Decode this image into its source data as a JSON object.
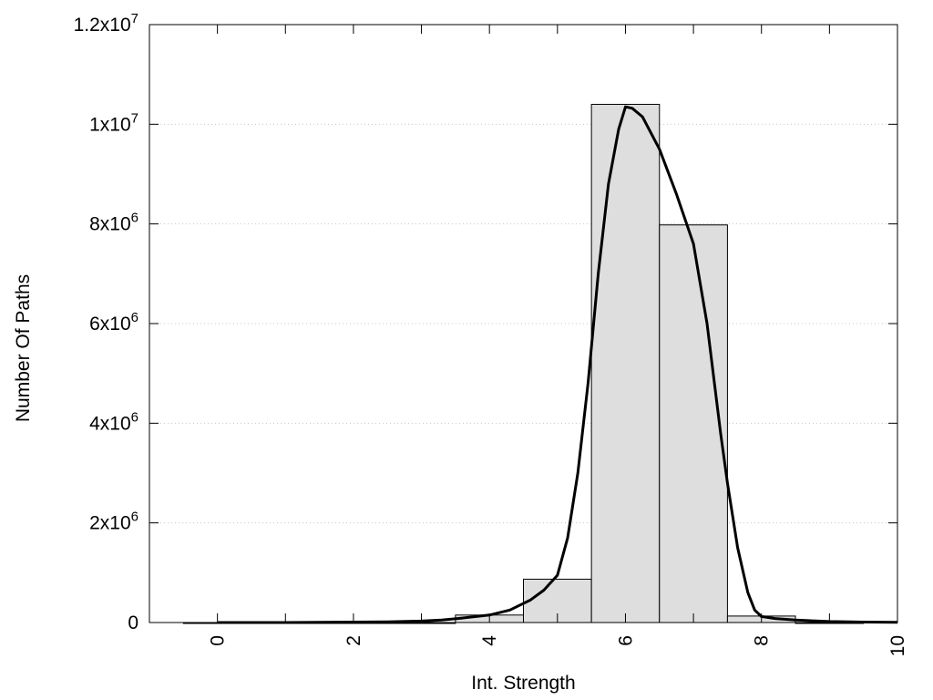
{
  "chart_data": {
    "type": "bar",
    "xlabel": "Int. Strength",
    "ylabel": "Number Of Paths",
    "xlim": [
      -1,
      10
    ],
    "ylim": [
      0,
      12000000
    ],
    "grid": "horizontal dotted",
    "x_ticks": [
      {
        "value": 0,
        "label": "0"
      },
      {
        "value": 2,
        "label": "2"
      },
      {
        "value": 4,
        "label": "4"
      },
      {
        "value": 6,
        "label": "6"
      },
      {
        "value": 8,
        "label": "8"
      },
      {
        "value": 10,
        "label": "10"
      }
    ],
    "y_ticks": [
      {
        "value": 0,
        "mantissa": "0",
        "exp": ""
      },
      {
        "value": 2000000,
        "mantissa": "2x10",
        "exp": "6"
      },
      {
        "value": 4000000,
        "mantissa": "4x10",
        "exp": "6"
      },
      {
        "value": 6000000,
        "mantissa": "6x10",
        "exp": "6"
      },
      {
        "value": 8000000,
        "mantissa": "8x10",
        "exp": "6"
      },
      {
        "value": 10000000,
        "mantissa": "1x10",
        "exp": "7"
      },
      {
        "value": 12000000,
        "mantissa": "1.2x10",
        "exp": "7"
      }
    ],
    "bars": [
      {
        "x": 0,
        "value": 0
      },
      {
        "x": 1,
        "value": 0
      },
      {
        "x": 2,
        "value": 0
      },
      {
        "x": 3,
        "value": 0
      },
      {
        "x": 4,
        "value": 150000
      },
      {
        "x": 5,
        "value": 870000
      },
      {
        "x": 6,
        "value": 10400000
      },
      {
        "x": 7,
        "value": 7980000
      },
      {
        "x": 8,
        "value": 130000
      },
      {
        "x": 9,
        "value": 0
      }
    ],
    "bar_width": 1,
    "curve": {
      "x": [
        0,
        1,
        2,
        2.5,
        3,
        3.3,
        3.6,
        4,
        4.3,
        4.6,
        4.8,
        5,
        5.15,
        5.3,
        5.45,
        5.6,
        5.75,
        5.9,
        6,
        6.1,
        6.25,
        6.5,
        6.75,
        7,
        7.2,
        7.4,
        7.5,
        7.65,
        7.8,
        7.9,
        8,
        8.2,
        8.5,
        9,
        9.5,
        10
      ],
      "y": [
        0,
        0,
        10000,
        15000,
        30000,
        50000,
        90000,
        150000,
        250000,
        450000,
        650000,
        950000,
        1700000,
        3000000,
        4800000,
        7000000,
        8800000,
        9900000,
        10350000,
        10320000,
        10150000,
        9500000,
        8600000,
        7600000,
        6000000,
        3800000,
        2800000,
        1500000,
        600000,
        250000,
        120000,
        80000,
        50000,
        20000,
        10000,
        5000
      ]
    }
  }
}
